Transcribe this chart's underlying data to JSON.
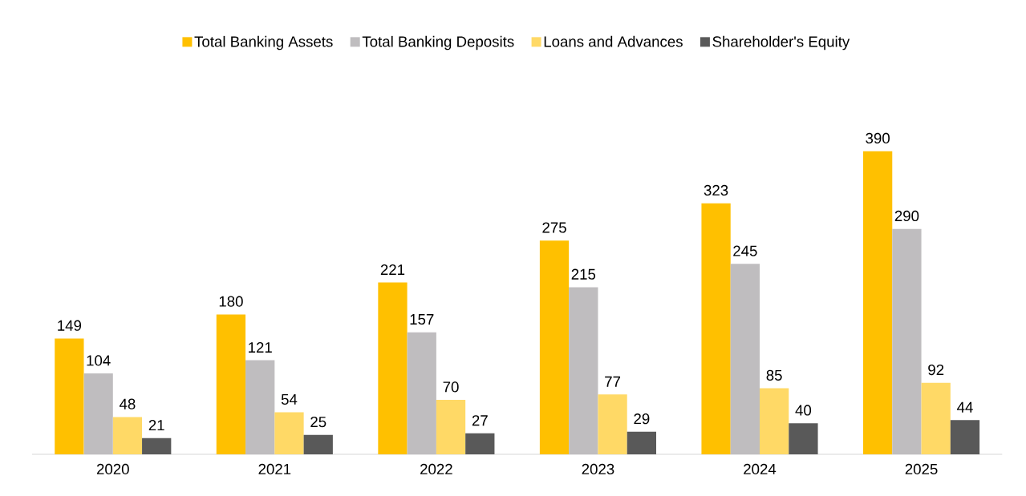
{
  "chart_data": {
    "type": "bar",
    "categories": [
      "2020",
      "2021",
      "2022",
      "2023",
      "2024",
      "2025"
    ],
    "series": [
      {
        "name": "Total Banking Assets",
        "color": "#ffc000",
        "values": [
          149,
          180,
          221,
          275,
          323,
          390
        ]
      },
      {
        "name": "Total Banking Deposits",
        "color": "#bfbdbf",
        "values": [
          104,
          121,
          157,
          215,
          245,
          290
        ]
      },
      {
        "name": "Loans and Advances",
        "color": "#ffd966",
        "values": [
          48,
          54,
          70,
          77,
          85,
          92
        ]
      },
      {
        "name": "Shareholder's Equity",
        "color": "#595959",
        "values": [
          21,
          25,
          27,
          29,
          40,
          44
        ]
      }
    ],
    "data_labels": true,
    "legend": "top"
  }
}
